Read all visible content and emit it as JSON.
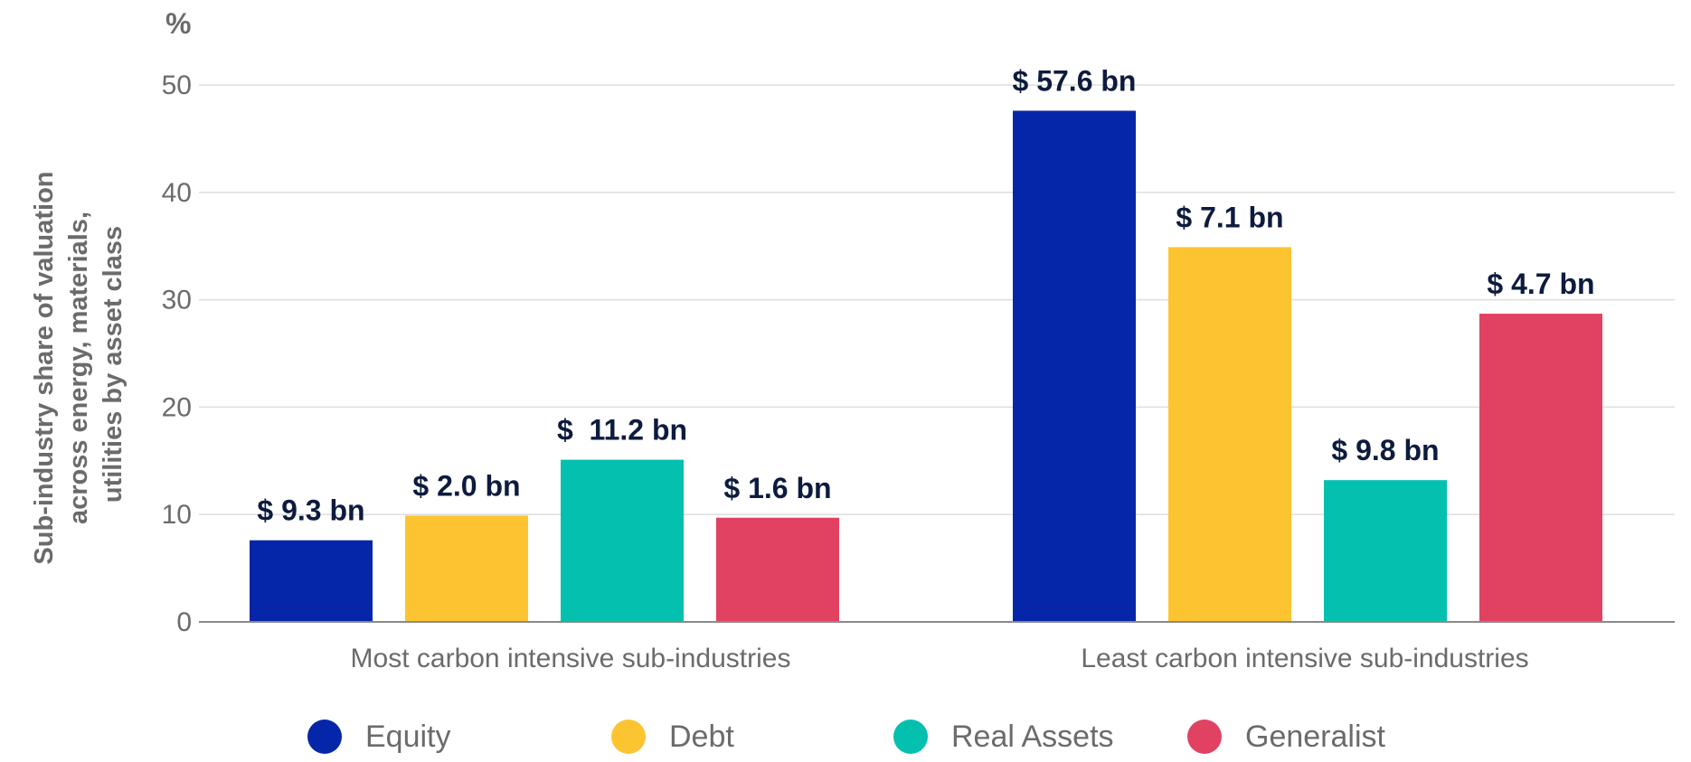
{
  "chart_data": {
    "type": "bar",
    "unit_label": "%",
    "ylabel_lines": [
      "Sub-industry  share of valuation",
      "across energy, materials,",
      "utilities by asset class"
    ],
    "ylim": [
      0,
      50
    ],
    "yticks": [
      0,
      10,
      20,
      30,
      40,
      50
    ],
    "grid": true,
    "legend_position": "bottom",
    "categories": [
      "Most carbon intensive sub-industries",
      "Least carbon intensive sub-industries"
    ],
    "series": [
      {
        "name": "Equity",
        "color": "#0626aa",
        "values": [
          7.6,
          47.6
        ],
        "labels": [
          "$ 9.3 bn",
          "$ 57.6 bn"
        ]
      },
      {
        "name": "Debt",
        "color": "#fdc431",
        "values": [
          9.9,
          34.9
        ],
        "labels": [
          "$ 2.0 bn",
          "$ 7.1 bn"
        ]
      },
      {
        "name": "Real Assets",
        "color": "#03c0af",
        "values": [
          15.1,
          13.2
        ],
        "labels": [
          "$  11.2 bn",
          "$ 9.8 bn"
        ]
      },
      {
        "name": "Generalist",
        "color": "#e24262",
        "values": [
          9.7,
          28.7
        ],
        "labels": [
          "$ 1.6 bn",
          "$ 4.7 bn"
        ]
      }
    ]
  }
}
